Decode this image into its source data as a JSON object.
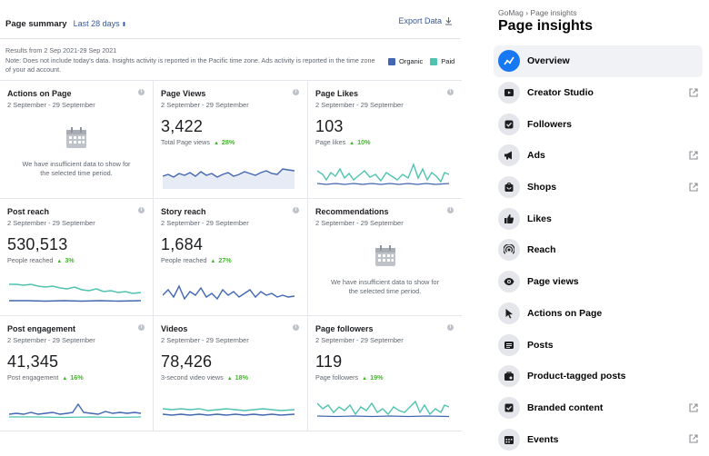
{
  "summary": {
    "title": "Page summary",
    "range": "Last 28 days",
    "export_label": "Export Data",
    "results_line": "Results from 2 Sep 2021-29 Sep 2021",
    "note": "Note: Does not include today's data. Insights activity is reported in the Pacific time zone. Ads activity is reported in the time zone of your ad account.",
    "legend": [
      {
        "label": "Organic",
        "color": "#4267b2"
      },
      {
        "label": "Paid",
        "color": "#4fc3b0"
      }
    ]
  },
  "cards": {
    "actions": {
      "title": "Actions on Page",
      "date": "2 September - 29 September",
      "message_1": "We have insufficient data to show for",
      "message_2": "the selected time period."
    },
    "page_views": {
      "title": "Page Views",
      "date": "2 September - 29 September",
      "value": "3,422",
      "sublabel": "Total Page views",
      "delta": "28%"
    },
    "page_likes": {
      "title": "Page Likes",
      "date": "2 September - 29 September",
      "value": "103",
      "sublabel": "Page likes",
      "delta": "10%"
    },
    "post_reach": {
      "title": "Post reach",
      "date": "2 September - 29 September",
      "value": "530,513",
      "sublabel": "People reached",
      "delta": "3%"
    },
    "story_reach": {
      "title": "Story reach",
      "date": "2 September - 29 September",
      "value": "1,684",
      "sublabel": "People reached",
      "delta": "27%"
    },
    "recommendations": {
      "title": "Recommendations",
      "date": "2 September - 29 September",
      "message_1": "We have insufficient data to show for",
      "message_2": "the selected time period."
    },
    "post_engagement": {
      "title": "Post engagement",
      "date": "2 September - 29 September",
      "value": "41,345",
      "sublabel": "Post engagement",
      "delta": "16%"
    },
    "videos": {
      "title": "Videos",
      "date": "2 September - 29 September",
      "value": "78,426",
      "sublabel": "3-second video views",
      "delta": "18%"
    },
    "page_followers": {
      "title": "Page followers",
      "date": "2 September - 29 September",
      "value": "119",
      "sublabel": "Page followers",
      "delta": "19%"
    }
  },
  "sidebar": {
    "breadcrumb": "GoMag › Page insights",
    "title": "Page insights",
    "items": [
      {
        "label": "Overview",
        "icon": "overview-icon",
        "active": true
      },
      {
        "label": "Creator Studio",
        "icon": "creator-studio-icon",
        "external": true
      },
      {
        "label": "Followers",
        "icon": "followers-icon"
      },
      {
        "label": "Ads",
        "icon": "megaphone-icon",
        "external": true
      },
      {
        "label": "Shops",
        "icon": "shop-bag-icon",
        "external": true
      },
      {
        "label": "Likes",
        "icon": "thumbs-up-icon"
      },
      {
        "label": "Reach",
        "icon": "reach-icon"
      },
      {
        "label": "Page views",
        "icon": "eye-icon"
      },
      {
        "label": "Actions on Page",
        "icon": "cursor-icon"
      },
      {
        "label": "Posts",
        "icon": "posts-icon"
      },
      {
        "label": "Product-tagged posts",
        "icon": "product-tag-icon"
      },
      {
        "label": "Branded content",
        "icon": "branded-content-icon",
        "external": true
      },
      {
        "label": "Events",
        "icon": "calendar-icon",
        "external": true
      }
    ]
  }
}
